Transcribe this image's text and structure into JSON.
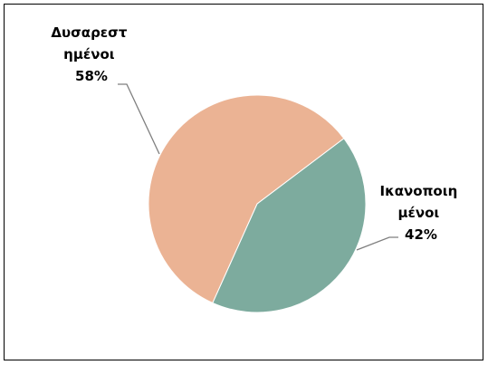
{
  "chart_data": {
    "type": "pie",
    "slices": [
      {
        "label_lines": [
          "Δυσαρεστ",
          "ημένοι"
        ],
        "percent_label": "58%",
        "value": 58,
        "color": "#EBB394"
      },
      {
        "label_lines": [
          "Ικανοποιη",
          "μένοι"
        ],
        "percent_label": "42%",
        "value": 42,
        "color": "#7DAB9E"
      }
    ],
    "legend": "none"
  }
}
